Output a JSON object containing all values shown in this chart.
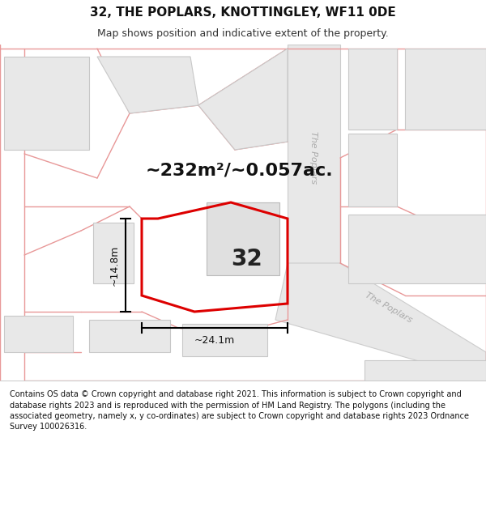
{
  "title": "32, THE POPLARS, KNOTTINGLEY, WF11 0DE",
  "subtitle": "Map shows position and indicative extent of the property.",
  "area_text": "~232m²/~0.057ac.",
  "number_label": "32",
  "dim_h": "~14.8m",
  "dim_w": "~24.1m",
  "footer": "Contains OS data © Crown copyright and database right 2021. This information is subject to Crown copyright and database rights 2023 and is reproduced with the permission of HM Land Registry. The polygons (including the associated geometry, namely x, y co-ordinates) are subject to Crown copyright and database rights 2023 Ordnance Survey 100026316.",
  "bg_color": "#ffffff",
  "map_bg": "#ffffff",
  "road_color": "#f7c8c8",
  "road_stroke": "#e89898",
  "building_fill": "#e8e8e8",
  "building_outline": "#c8c8c8",
  "road_fill_light": "#f0d8d8",
  "plot_outline": "#dd0000",
  "road_label_color": "#aaaaaa",
  "footer_color": "#111111",
  "title_color": "#111111",
  "title_fontsize": 11,
  "subtitle_fontsize": 9,
  "area_fontsize": 16,
  "number_fontsize": 20,
  "dim_fontsize": 9,
  "footer_fontsize": 7
}
